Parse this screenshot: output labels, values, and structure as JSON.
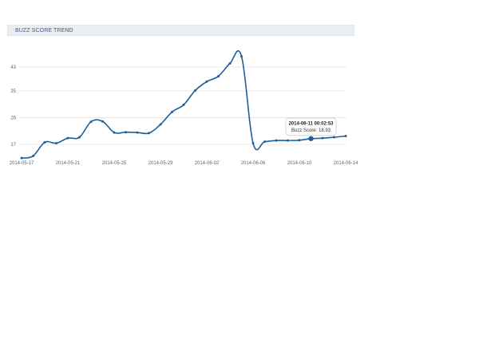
{
  "header": {
    "title": "BUZZ SCORE TREND"
  },
  "tooltip": {
    "date": "2014-06-11 00:02:53",
    "series_label": "Buzz Score",
    "value": "18.93"
  },
  "colors": {
    "line": "#1c5f9b",
    "grid": "#e3e3e3",
    "header_bg": "#eaedf1",
    "header_text": "#5a4c8a"
  },
  "chart_data": {
    "type": "line",
    "title": "BUZZ SCORE TREND",
    "xlabel": "",
    "ylabel": "",
    "grid": true,
    "ylim": [
      14.5,
      47
    ],
    "y_ticks": [
      "17",
      "26",
      "35",
      "43"
    ],
    "x_ticks": [
      "2014-05-17",
      "2014-05-21",
      "2014-05-25",
      "2014-05-29",
      "2014-06-02",
      "2014-06-06",
      "2014-06-10",
      "2014-06-14"
    ],
    "x": [
      "2014-05-17",
      "2014-05-18",
      "2014-05-19",
      "2014-05-20",
      "2014-05-21",
      "2014-05-22",
      "2014-05-23",
      "2014-05-24",
      "2014-05-25",
      "2014-05-26",
      "2014-05-27",
      "2014-05-28",
      "2014-05-29",
      "2014-05-30",
      "2014-05-31",
      "2014-06-01",
      "2014-06-02",
      "2014-06-03",
      "2014-06-04",
      "2014-06-05",
      "2014-06-06",
      "2014-06-07",
      "2014-06-08",
      "2014-06-09",
      "2014-06-10",
      "2014-06-11",
      "2014-06-12",
      "2014-06-13",
      "2014-06-14"
    ],
    "series": [
      {
        "name": "Buzz Score",
        "values": [
          12.4,
          13.1,
          17.7,
          17.4,
          19.1,
          19.4,
          24.6,
          24.7,
          21.0,
          21.1,
          21.0,
          20.8,
          23.7,
          27.9,
          30.3,
          35.1,
          38.1,
          39.9,
          44.2,
          46.6,
          17.4,
          17.9,
          18.3,
          18.3,
          18.4,
          18.93,
          19.1,
          19.4,
          19.8
        ]
      }
    ]
  }
}
